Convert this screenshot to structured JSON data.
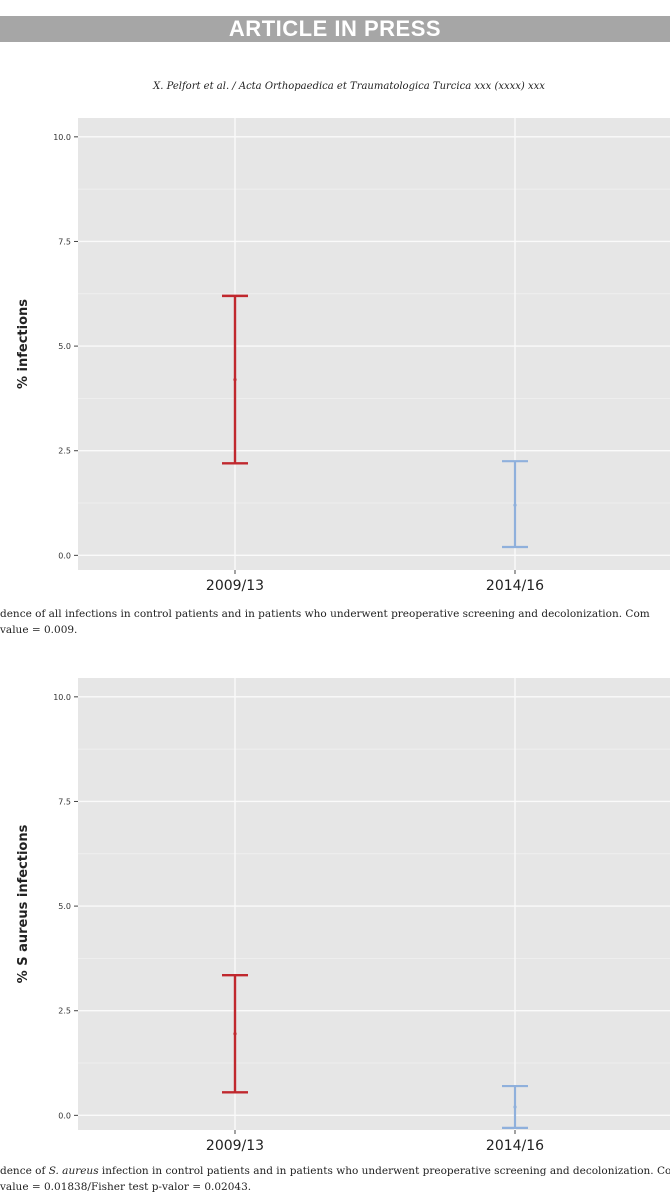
{
  "banner": "ARTICLE IN PRESS",
  "running_header": "X. Pelfort et al. / Acta Orthopaedica et Traumatologica Turcica xxx (xxxx) xxx",
  "chart_data": [
    {
      "type": "errorbar",
      "ylabel": "% infections",
      "ylim": [
        0,
        10
      ],
      "yticks": [
        "0.0",
        "2.5",
        "5.0",
        "7.5",
        "10.0"
      ],
      "categories": [
        "2009/13",
        "2014/16"
      ],
      "series": [
        {
          "category": "2009/13",
          "estimate": 4.2,
          "lower": 2.2,
          "upper": 6.2,
          "color": "#c0282e"
        },
        {
          "category": "2014/16",
          "estimate": 1.2,
          "lower": 0.2,
          "upper": 2.25,
          "color": "#8fb0dc"
        }
      ]
    },
    {
      "type": "errorbar",
      "ylabel": "% S aureus infections",
      "ylim": [
        0,
        10
      ],
      "yticks": [
        "0.0",
        "2.5",
        "5.0",
        "7.5",
        "10.0"
      ],
      "categories": [
        "2009/13",
        "2014/16"
      ],
      "series": [
        {
          "category": "2009/13",
          "estimate": 1.95,
          "lower": 0.55,
          "upper": 3.35,
          "color": "#c0282e"
        },
        {
          "category": "2014/16",
          "estimate": 0.2,
          "lower": -0.3,
          "upper": 0.7,
          "color": "#8fb0dc"
        }
      ]
    }
  ],
  "captions": {
    "fig1_line1": "dence of all infections in control patients and in patients who underwent preoperative screening and decolonization. Com",
    "fig1_line2": "value = 0.009.",
    "fig2_line1_a": "dence of ",
    "fig2_line1_italic": "S. aureus",
    "fig2_line1_b": " infection in control patients and in patients who underwent preoperative screening and decolonization. Com",
    "fig2_line2": "value = 0.01838/Fisher test p-valor = 0.02043."
  }
}
